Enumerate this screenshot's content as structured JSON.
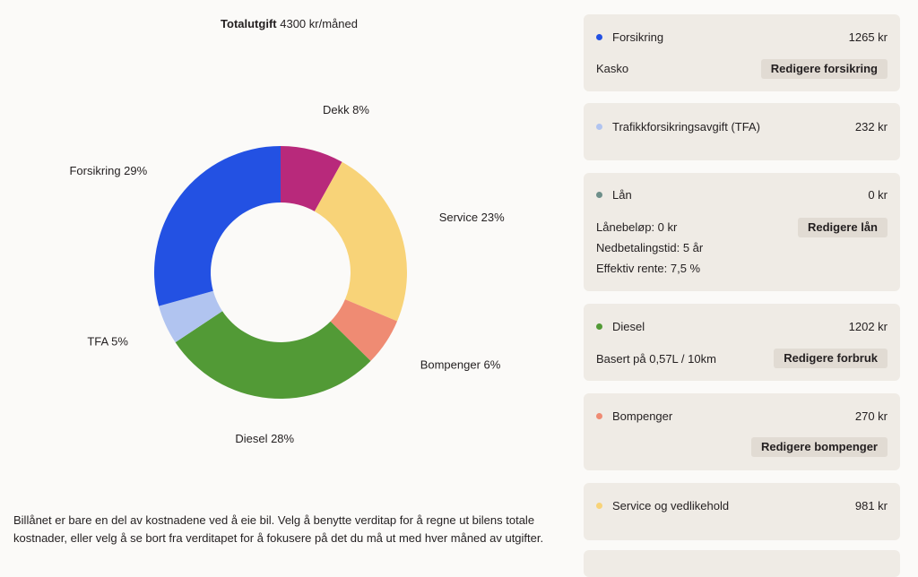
{
  "header": {
    "total_label": "Totalutgift",
    "total_value": "4300 kr/måned"
  },
  "chart_data": {
    "type": "pie",
    "donut": true,
    "slices": [
      {
        "label": "Dekk 8%",
        "value": 8,
        "color": "#b8297b"
      },
      {
        "label": "Service 23%",
        "value": 23,
        "color": "#f8d378"
      },
      {
        "label": "Bompenger 6%",
        "value": 6,
        "color": "#ef8b73"
      },
      {
        "label": "Diesel 28%",
        "value": 28,
        "color": "#529a36"
      },
      {
        "label": "TFA 5%",
        "value": 5,
        "color": "#b1c4f0"
      },
      {
        "label": "Forsikring 29%",
        "value": 29,
        "color": "#2351e3"
      }
    ]
  },
  "footnote": "Billånet er bare en del av kostnadene ved å eie bil. Velg å benytte verditap for å regne ut bilens totale kostnader, eller velg å se bort fra verditapet for å fokusere på det du må ut med hver måned av utgifter.",
  "cards": {
    "forsikring": {
      "name": "Forsikring",
      "amount": "1265 kr",
      "detail": "Kasko",
      "button": "Redigere forsikring",
      "color": "#2351e3"
    },
    "tfa": {
      "name": "Trafikkforsikringsavgift (TFA)",
      "amount": "232 kr",
      "color": "#b1c4f0"
    },
    "lan": {
      "name": "Lån",
      "amount": "0 kr",
      "detail1": "Lånebeløp: 0 kr",
      "detail2": "Nedbetalingstid: 5 år",
      "detail3": "Effektiv rente: 7,5 %",
      "button": "Redigere lån",
      "color": "#6e8f8a"
    },
    "diesel": {
      "name": "Diesel",
      "amount": "1202 kr",
      "detail": "Basert på 0,57L / 10km",
      "button": "Redigere forbruk",
      "color": "#529a36"
    },
    "bompenger": {
      "name": "Bompenger",
      "amount": "270 kr",
      "button": "Redigere bompenger",
      "color": "#ef8b73"
    },
    "service": {
      "name": "Service og vedlikehold",
      "amount": "981 kr",
      "color": "#f8d378"
    }
  }
}
